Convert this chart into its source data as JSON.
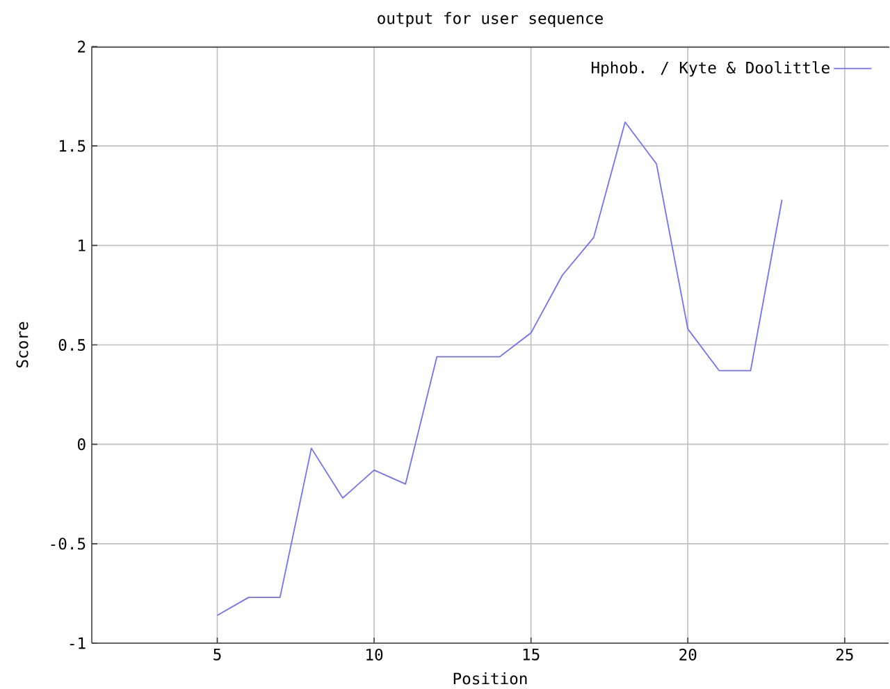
{
  "chart_data": {
    "type": "line",
    "title": "output for user sequence",
    "xlabel": "Position",
    "ylabel": "Score",
    "x": [
      5,
      6,
      7,
      8,
      9,
      10,
      11,
      12,
      13,
      14,
      15,
      16,
      17,
      18,
      19,
      20,
      21,
      22,
      23
    ],
    "series": [
      {
        "name": "Hphob. / Kyte & Doolittle",
        "color": "#7070ff",
        "values": [
          -0.86,
          -0.77,
          -0.77,
          -0.02,
          -0.27,
          -0.13,
          -0.2,
          0.44,
          0.44,
          0.44,
          0.56,
          0.85,
          1.04,
          1.62,
          1.41,
          0.58,
          0.37,
          0.37,
          1.23
        ]
      }
    ],
    "xlim": [
      1,
      26.4
    ],
    "ylim": [
      -1,
      2
    ],
    "xticks": [
      5,
      10,
      15,
      20,
      25
    ],
    "yticks": [
      -1,
      -0.5,
      0,
      0.5,
      1,
      1.5,
      2
    ],
    "grid": true,
    "legend": "top right",
    "line_style": "solid"
  }
}
